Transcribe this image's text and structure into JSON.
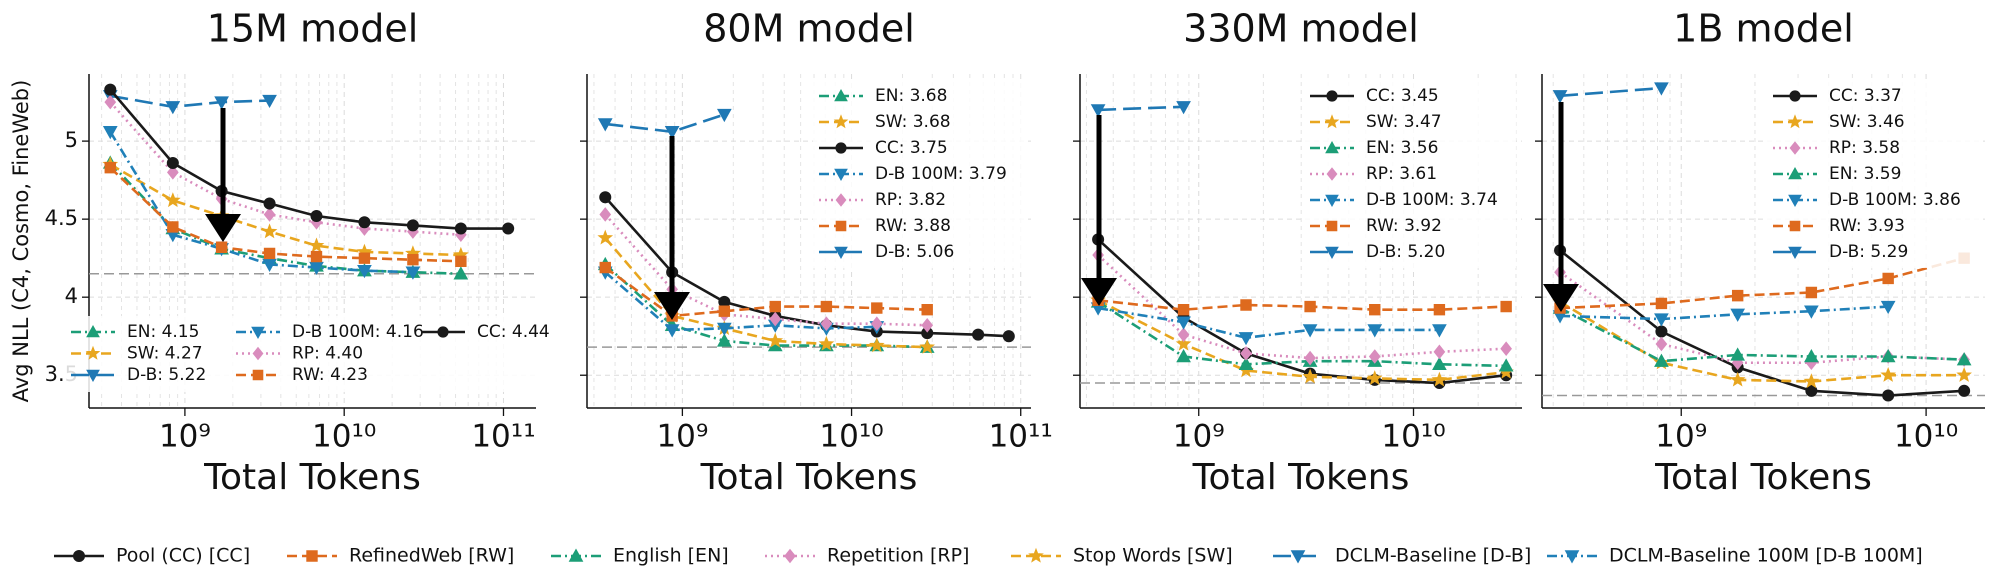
{
  "legend": [
    {
      "name": "Pool (CC) [CC]",
      "color": "#1a1a1a",
      "marker": "circle",
      "dash": "solid"
    },
    {
      "name": "RefinedWeb [RW]",
      "color": "#de6a1e",
      "marker": "square",
      "dash": "dashed"
    },
    {
      "name": "English [EN]",
      "color": "#1c9e77",
      "marker": "triangle-up",
      "dash": "dashdot"
    },
    {
      "name": "Repetition [RP]",
      "color": "#d98cbd",
      "marker": "diamond",
      "dash": "dotted"
    },
    {
      "name": "Stop Words [SW]",
      "color": "#e8a61f",
      "marker": "star",
      "dash": "dashed"
    },
    {
      "name": "DCLM-Baseline [D-B]",
      "color": "#1f78b4",
      "marker": "triangle-down",
      "dash": "longdash"
    },
    {
      "name": "DCLM-Baseline 100M [D-B 100M]",
      "color": "#2080b8",
      "marker": "triangle-down",
      "dash": "dashdot"
    }
  ],
  "chart_data": [
    {
      "type": "line",
      "title": "15M model",
      "xlabel": "Total Tokens",
      "ylabel": "Avg NLL (C4, Cosmo, FineWeb)",
      "log_x": true,
      "grid": true,
      "legend_corner": "lower left",
      "legend_columns": 3,
      "hline": 4.15,
      "xlim": [
        250000000.0,
        160000000000.0
      ],
      "xticks": [
        {
          "value": 1000000000.0,
          "label": "10⁹"
        },
        {
          "value": 10000000000.0,
          "label": "10¹⁰"
        },
        {
          "value": 100000000000.0,
          "label": "10¹¹"
        }
      ],
      "ylim": [
        3.29,
        5.43
      ],
      "yticks": [
        3.5,
        4.0,
        4.5,
        5.0
      ],
      "x": [
        340000000.0,
        840000000.0,
        1700000000.0,
        3400000000.0,
        6700000000.0,
        13400000000.0,
        27000000000.0,
        54000000000.0,
        107000000000.0
      ],
      "series": [
        {
          "name": "EN: 4.15",
          "color": "#1c9e77",
          "marker": "triangle-up",
          "dash": "dashdot",
          "values": [
            4.86,
            4.44,
            4.31,
            4.25,
            4.2,
            4.17,
            4.16,
            4.15,
            null
          ]
        },
        {
          "name": "SW: 4.27",
          "color": "#e8a61f",
          "marker": "star",
          "dash": "dashed",
          "values": [
            4.85,
            4.62,
            4.52,
            4.42,
            4.33,
            4.29,
            4.28,
            4.27,
            null
          ]
        },
        {
          "name": "D-B: 5.22",
          "color": "#1f78b4",
          "marker": "triangle-down",
          "dash": "longdash",
          "values": [
            5.29,
            5.22,
            5.25,
            5.26,
            null,
            null,
            null,
            null,
            null
          ]
        },
        {
          "name": "D-B 100M: 4.16",
          "color": "#2080b8",
          "marker": "triangle-down",
          "dash": "dashdot",
          "values": [
            5.06,
            4.4,
            4.31,
            4.21,
            4.19,
            4.17,
            4.16,
            null,
            null
          ]
        },
        {
          "name": "RP: 4.40",
          "color": "#d98cbd",
          "marker": "diamond",
          "dash": "dotted",
          "values": [
            5.25,
            4.8,
            4.63,
            4.53,
            4.48,
            4.44,
            4.42,
            4.4,
            null
          ]
        },
        {
          "name": "RW: 4.23",
          "color": "#de6a1e",
          "marker": "square",
          "dash": "dashed",
          "values": [
            4.83,
            4.45,
            4.32,
            4.28,
            4.26,
            4.25,
            4.24,
            4.23,
            null
          ]
        },
        {
          "name": "CC: 4.44",
          "color": "#1a1a1a",
          "marker": "circle",
          "dash": "solid",
          "values": [
            5.33,
            4.86,
            4.68,
            4.6,
            4.52,
            4.48,
            4.46,
            4.44,
            4.44
          ]
        }
      ]
    },
    {
      "type": "line",
      "title": "80M model",
      "xlabel": "Total Tokens",
      "log_x": true,
      "grid": true,
      "legend_corner": "upper right",
      "hline": 3.68,
      "xlim": [
        273000000.0,
        115000000000.0
      ],
      "xticks": [
        {
          "value": 1000000000.0,
          "label": "10⁹"
        },
        {
          "value": 10000000000.0,
          "label": "10¹⁰"
        },
        {
          "value": 100000000000.0,
          "label": "10¹¹"
        }
      ],
      "ylim": [
        3.29,
        5.43
      ],
      "yticks": [
        3.5,
        4.0,
        4.5,
        5.0
      ],
      "x": [
        350000000.0,
        870000000.0,
        1770000000.0,
        3540000000.0,
        7100000000.0,
        14100000000.0,
        28000000000.0,
        56000000000.0,
        85000000000.0
      ],
      "series": [
        {
          "name": "EN: 3.68",
          "color": "#1c9e77",
          "marker": "triangle-up",
          "dash": "dashdot",
          "values": [
            4.21,
            3.82,
            3.72,
            3.69,
            3.69,
            3.69,
            3.68,
            null,
            null
          ]
        },
        {
          "name": "SW: 3.68",
          "color": "#e8a61f",
          "marker": "star",
          "dash": "dashed",
          "values": [
            4.38,
            3.88,
            3.8,
            3.72,
            3.7,
            3.69,
            3.68,
            null,
            null
          ]
        },
        {
          "name": "CC: 3.75",
          "color": "#1a1a1a",
          "marker": "circle",
          "dash": "solid",
          "values": [
            4.64,
            4.16,
            3.97,
            3.88,
            3.82,
            3.78,
            3.77,
            3.76,
            3.75
          ]
        },
        {
          "name": "D-B 100M: 3.79",
          "color": "#2080b8",
          "marker": "triangle-down",
          "dash": "dashdot",
          "values": [
            4.16,
            3.79,
            3.8,
            3.82,
            3.8,
            3.81,
            null,
            null,
            null
          ]
        },
        {
          "name": "RP: 3.82",
          "color": "#d98cbd",
          "marker": "diamond",
          "dash": "dotted",
          "values": [
            4.53,
            4.05,
            3.89,
            3.86,
            3.83,
            3.83,
            3.82,
            null,
            null
          ]
        },
        {
          "name": "RW: 3.88",
          "color": "#de6a1e",
          "marker": "square",
          "dash": "dashed",
          "values": [
            4.19,
            3.88,
            3.91,
            3.94,
            3.94,
            3.93,
            3.92,
            null,
            null
          ]
        },
        {
          "name": "D-B: 5.06",
          "color": "#1f78b4",
          "marker": "triangle-down",
          "dash": "longdash",
          "values": [
            5.11,
            5.06,
            5.17,
            null,
            null,
            null,
            null,
            null,
            null
          ]
        }
      ]
    },
    {
      "type": "line",
      "title": "330M model",
      "xlabel": "Total Tokens",
      "log_x": true,
      "grid": true,
      "legend_corner": "upper right",
      "hline": 3.45,
      "xlim": [
        280000000.0,
        32000000000.0
      ],
      "xticks": [
        {
          "value": 1000000000.0,
          "label": "10⁹"
        },
        {
          "value": 10000000000.0,
          "label": "10¹⁰"
        }
      ],
      "ylim": [
        3.29,
        5.43
      ],
      "yticks": [
        3.5,
        4.0,
        4.5,
        5.0
      ],
      "x": [
        340000000.0,
        850000000.0,
        1660000000.0,
        3300000000.0,
        6600000000.0,
        13200000000.0,
        27000000000.0
      ],
      "series": [
        {
          "name": "CC: 3.45",
          "color": "#1a1a1a",
          "marker": "circle",
          "dash": "solid",
          "values": [
            4.37,
            3.87,
            3.64,
            3.51,
            3.47,
            3.45,
            3.5
          ]
        },
        {
          "name": "SW: 3.47",
          "color": "#e8a61f",
          "marker": "star",
          "dash": "dashed",
          "values": [
            3.98,
            3.7,
            3.53,
            3.49,
            3.48,
            3.47,
            3.52
          ]
        },
        {
          "name": "EN: 3.56",
          "color": "#1c9e77",
          "marker": "triangle-up",
          "dash": "dashdot",
          "values": [
            3.97,
            3.62,
            3.57,
            3.59,
            3.59,
            3.57,
            3.56
          ]
        },
        {
          "name": "RP: 3.61",
          "color": "#d98cbd",
          "marker": "diamond",
          "dash": "dotted",
          "values": [
            4.27,
            3.76,
            3.64,
            3.61,
            3.62,
            3.65,
            3.67
          ]
        },
        {
          "name": "D-B 100M: 3.74",
          "color": "#2080b8",
          "marker": "triangle-down",
          "dash": "dashdot",
          "values": [
            3.93,
            3.84,
            3.74,
            3.79,
            3.79,
            3.79,
            null
          ]
        },
        {
          "name": "RW: 3.92",
          "color": "#de6a1e",
          "marker": "square",
          "dash": "dashed",
          "values": [
            3.98,
            3.92,
            3.95,
            3.94,
            3.92,
            3.92,
            3.94
          ]
        },
        {
          "name": "D-B: 5.20",
          "color": "#1f78b4",
          "marker": "triangle-down",
          "dash": "longdash",
          "values": [
            5.2,
            5.22,
            null,
            null,
            null,
            null,
            null
          ]
        }
      ]
    },
    {
      "type": "line",
      "title": "1B model",
      "xlabel": "Total Tokens",
      "log_x": true,
      "grid": true,
      "legend_corner": "upper right",
      "hline": 3.37,
      "xlim": [
        270000000.0,
        17400000000.0
      ],
      "xticks": [
        {
          "value": 1000000000.0,
          "label": "10⁹"
        },
        {
          "value": 10000000000.0,
          "label": "10¹⁰"
        }
      ],
      "ylim": [
        3.29,
        5.43
      ],
      "yticks": [
        3.5,
        4.0,
        4.5,
        5.0
      ],
      "x": [
        320000000.0,
        830000000.0,
        1700000000.0,
        3400000000.0,
        7000000000.0,
        14300000000.0
      ],
      "series": [
        {
          "name": "CC: 3.37",
          "color": "#1a1a1a",
          "marker": "circle",
          "dash": "solid",
          "values": [
            4.3,
            3.78,
            3.55,
            3.4,
            3.37,
            3.4
          ]
        },
        {
          "name": "SW: 3.46",
          "color": "#e8a61f",
          "marker": "star",
          "dash": "dashed",
          "values": [
            3.97,
            3.58,
            3.47,
            3.46,
            3.5,
            3.5
          ]
        },
        {
          "name": "RP: 3.58",
          "color": "#d98cbd",
          "marker": "diamond",
          "dash": "dotted",
          "values": [
            4.16,
            3.7,
            3.58,
            3.58,
            3.62,
            3.6
          ]
        },
        {
          "name": "EN: 3.59",
          "color": "#1c9e77",
          "marker": "triangle-up",
          "dash": "dashdot",
          "values": [
            3.93,
            3.59,
            3.63,
            3.62,
            3.62,
            3.6
          ]
        },
        {
          "name": "D-B 100M: 3.86",
          "color": "#2080b8",
          "marker": "triangle-down",
          "dash": "dashdot",
          "values": [
            3.88,
            3.86,
            3.89,
            3.91,
            3.94,
            null
          ]
        },
        {
          "name": "RW: 3.93",
          "color": "#de6a1e",
          "marker": "square",
          "dash": "dashed",
          "values": [
            3.93,
            3.96,
            4.01,
            4.03,
            4.12,
            4.25
          ]
        },
        {
          "name": "D-B: 5.29",
          "color": "#1f78b4",
          "marker": "triangle-down",
          "dash": "longdash",
          "values": [
            5.29,
            5.34,
            null,
            null,
            null,
            null
          ]
        }
      ]
    }
  ]
}
